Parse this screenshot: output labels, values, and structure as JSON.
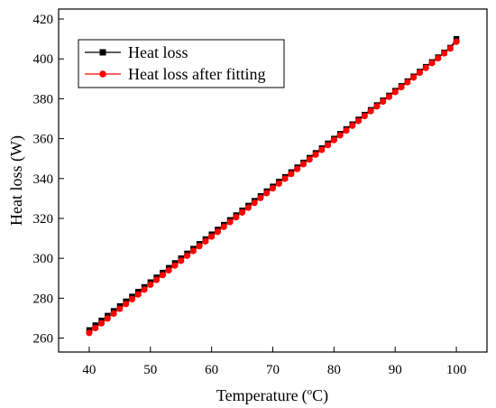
{
  "chart_data": {
    "type": "line",
    "title": "",
    "xlabel": "Temperature",
    "xlabel_unit_prefix": "(",
    "xlabel_unit_sup": "o",
    "xlabel_unit": "C)",
    "ylabel": "Heat loss (W)",
    "xlim": [
      35,
      105
    ],
    "ylim": [
      253,
      425
    ],
    "x_ticks": [
      40,
      50,
      60,
      70,
      80,
      90,
      100
    ],
    "y_ticks": [
      260,
      280,
      300,
      320,
      340,
      360,
      380,
      400,
      420
    ],
    "x_start": 40,
    "x_end": 100,
    "x_step": 1,
    "series": [
      {
        "name": "Heat loss",
        "marker": "square",
        "color": "#000000",
        "values": [
          264.0,
          266.4,
          268.8,
          271.2,
          273.6,
          276.0,
          278.4,
          280.8,
          283.2,
          285.6,
          288.0,
          290.4,
          292.8,
          295.2,
          297.6,
          300.0,
          302.4,
          304.8,
          307.2,
          309.6,
          312.0,
          314.4,
          316.8,
          319.2,
          321.6,
          324.0,
          326.4,
          328.8,
          331.2,
          333.6,
          336.0,
          338.4,
          340.8,
          343.2,
          345.6,
          348.0,
          350.4,
          352.8,
          355.2,
          357.6,
          360.0,
          362.4,
          364.8,
          367.2,
          369.6,
          372.0,
          374.4,
          376.8,
          379.2,
          381.6,
          384.0,
          386.4,
          388.8,
          391.2,
          393.6,
          396.0,
          398.4,
          400.8,
          403.2,
          405.6,
          410.0
        ]
      },
      {
        "name": "Heat loss after fitting",
        "marker": "circle",
        "color": "#ff0000",
        "values": [
          262.6,
          265.0,
          267.4,
          269.8,
          272.3,
          274.7,
          277.1,
          279.5,
          281.9,
          284.3,
          286.8,
          289.2,
          291.6,
          294.0,
          296.4,
          298.8,
          301.3,
          303.7,
          306.1,
          308.5,
          310.9,
          313.3,
          315.8,
          318.2,
          320.6,
          323.0,
          325.4,
          327.8,
          330.3,
          332.7,
          335.1,
          337.5,
          339.9,
          342.3,
          344.8,
          347.2,
          349.6,
          352.0,
          354.4,
          356.8,
          359.3,
          361.7,
          364.1,
          366.5,
          368.9,
          371.3,
          373.8,
          376.2,
          378.6,
          381.0,
          383.4,
          385.8,
          388.3,
          390.7,
          393.1,
          395.5,
          397.9,
          400.3,
          402.8,
          405.2,
          408.6
        ]
      }
    ],
    "legend_position": "top-left",
    "grid": false
  }
}
